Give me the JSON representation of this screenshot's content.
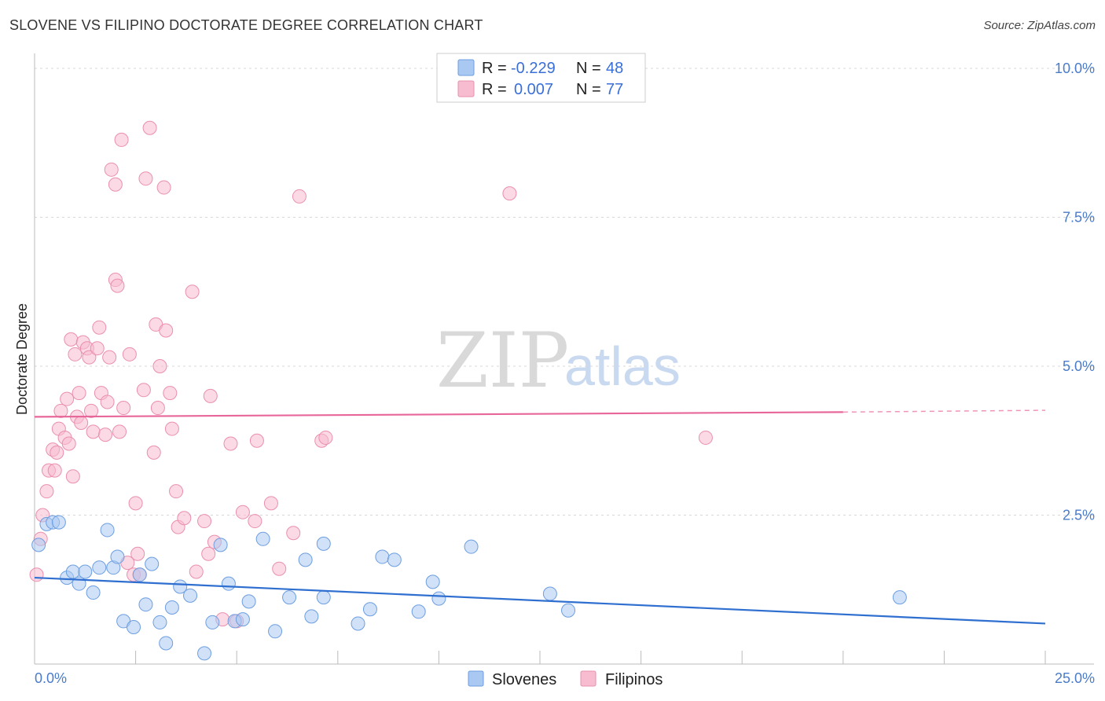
{
  "title": "SLOVENE VS FILIPINO DOCTORATE DEGREE CORRELATION CHART",
  "source": "Source: ZipAtlas.com",
  "watermark": {
    "zip": "ZIP",
    "atlas": "atlas"
  },
  "colors": {
    "slovene_fill": "#a9c8f2",
    "slovene_stroke": "#6d9ee0",
    "slovene_line": "#2f6fd0",
    "filipino_fill": "#f7bcd0",
    "filipino_stroke": "#ea8fae",
    "filipino_line": "#e8679a",
    "tick": "#4a7cc9",
    "grid": "#d8d8d8"
  },
  "legend": {
    "rows": [
      {
        "r_label": "R =",
        "r_value": "-0.229",
        "n_label": "N =",
        "n_value": "48"
      },
      {
        "r_label": "R =",
        "r_value": "0.007",
        "n_label": "N =",
        "n_value": "77"
      }
    ],
    "bottom": [
      "Slovenes",
      "Filipinos"
    ]
  },
  "chart_data": {
    "type": "scatter",
    "title": "SLOVENE VS FILIPINO DOCTORATE DEGREE CORRELATION CHART",
    "xlabel": "",
    "ylabel": "Doctorate Degree",
    "xlim": [
      0,
      25
    ],
    "ylim": [
      0,
      10.25
    ],
    "x_tick_labels": [
      "0.0%",
      "25.0%"
    ],
    "y_ticks": [
      2.5,
      5.0,
      7.5,
      10.0
    ],
    "y_tick_labels": [
      "2.5%",
      "5.0%",
      "7.5%",
      "10.0%"
    ],
    "series": [
      {
        "name": "Slovenes",
        "r": -0.229,
        "n": 48,
        "trend": {
          "x0": 0,
          "y0": 1.45,
          "x1": 25,
          "y1": 0.68
        },
        "points": [
          [
            0.1,
            2.0
          ],
          [
            0.3,
            2.35
          ],
          [
            0.45,
            2.38
          ],
          [
            0.6,
            2.38
          ],
          [
            0.8,
            1.45
          ],
          [
            0.95,
            1.55
          ],
          [
            1.1,
            1.35
          ],
          [
            1.25,
            1.55
          ],
          [
            1.45,
            1.2
          ],
          [
            1.6,
            1.62
          ],
          [
            1.8,
            2.25
          ],
          [
            1.95,
            1.62
          ],
          [
            2.05,
            1.8
          ],
          [
            2.2,
            0.72
          ],
          [
            2.45,
            0.62
          ],
          [
            2.6,
            1.5
          ],
          [
            2.75,
            1.0
          ],
          [
            2.9,
            1.68
          ],
          [
            3.1,
            0.7
          ],
          [
            3.25,
            0.35
          ],
          [
            3.4,
            0.95
          ],
          [
            3.6,
            1.3
          ],
          [
            3.85,
            1.15
          ],
          [
            4.2,
            0.18
          ],
          [
            4.4,
            0.7
          ],
          [
            4.6,
            2.0
          ],
          [
            4.8,
            1.35
          ],
          [
            4.95,
            0.72
          ],
          [
            5.15,
            0.75
          ],
          [
            5.3,
            1.05
          ],
          [
            5.65,
            2.1
          ],
          [
            5.95,
            0.55
          ],
          [
            6.3,
            1.12
          ],
          [
            6.7,
            1.75
          ],
          [
            6.85,
            0.8
          ],
          [
            7.15,
            1.12
          ],
          [
            7.15,
            2.02
          ],
          [
            8.0,
            0.68
          ],
          [
            8.3,
            0.92
          ],
          [
            8.6,
            1.8
          ],
          [
            8.9,
            1.75
          ],
          [
            9.5,
            0.88
          ],
          [
            9.85,
            1.38
          ],
          [
            10.0,
            1.1
          ],
          [
            10.8,
            1.97
          ],
          [
            12.75,
            1.18
          ],
          [
            13.2,
            0.9
          ],
          [
            21.4,
            1.12
          ]
        ]
      },
      {
        "name": "Filipinos",
        "r": 0.007,
        "n": 77,
        "trend": {
          "x0": 0,
          "y0": 4.15,
          "x1": 20,
          "y1": 4.23,
          "dash_x1": 25,
          "dash_y1": 4.26
        },
        "points": [
          [
            0.05,
            1.5
          ],
          [
            0.15,
            2.1
          ],
          [
            0.2,
            2.5
          ],
          [
            0.3,
            2.9
          ],
          [
            0.35,
            3.25
          ],
          [
            0.45,
            3.6
          ],
          [
            0.5,
            3.25
          ],
          [
            0.55,
            3.55
          ],
          [
            0.6,
            3.95
          ],
          [
            0.65,
            4.25
          ],
          [
            0.75,
            3.8
          ],
          [
            0.8,
            4.45
          ],
          [
            0.85,
            3.7
          ],
          [
            0.9,
            5.45
          ],
          [
            0.95,
            3.15
          ],
          [
            1.0,
            5.2
          ],
          [
            1.05,
            4.15
          ],
          [
            1.1,
            4.55
          ],
          [
            1.15,
            4.05
          ],
          [
            1.2,
            5.4
          ],
          [
            1.3,
            5.3
          ],
          [
            1.35,
            5.15
          ],
          [
            1.4,
            4.25
          ],
          [
            1.45,
            3.9
          ],
          [
            1.55,
            5.3
          ],
          [
            1.6,
            5.65
          ],
          [
            1.65,
            4.55
          ],
          [
            1.75,
            3.85
          ],
          [
            1.8,
            4.4
          ],
          [
            1.85,
            5.15
          ],
          [
            1.9,
            8.3
          ],
          [
            2.0,
            8.05
          ],
          [
            2.0,
            6.45
          ],
          [
            2.05,
            6.35
          ],
          [
            2.1,
            3.9
          ],
          [
            2.15,
            8.8
          ],
          [
            2.2,
            4.3
          ],
          [
            2.3,
            1.7
          ],
          [
            2.35,
            5.2
          ],
          [
            2.45,
            1.5
          ],
          [
            2.5,
            2.7
          ],
          [
            2.55,
            1.85
          ],
          [
            2.6,
            1.5
          ],
          [
            2.7,
            4.6
          ],
          [
            2.75,
            8.15
          ],
          [
            2.85,
            9.0
          ],
          [
            2.95,
            3.55
          ],
          [
            3.0,
            5.7
          ],
          [
            3.05,
            4.3
          ],
          [
            3.1,
            5.0
          ],
          [
            3.2,
            8.0
          ],
          [
            3.25,
            5.6
          ],
          [
            3.35,
            4.55
          ],
          [
            3.4,
            3.95
          ],
          [
            3.5,
            2.9
          ],
          [
            3.55,
            2.3
          ],
          [
            3.7,
            2.45
          ],
          [
            3.9,
            6.25
          ],
          [
            4.0,
            1.55
          ],
          [
            4.2,
            2.4
          ],
          [
            4.3,
            1.85
          ],
          [
            4.35,
            4.5
          ],
          [
            4.45,
            2.05
          ],
          [
            4.65,
            0.75
          ],
          [
            4.85,
            3.7
          ],
          [
            5.0,
            0.72
          ],
          [
            5.15,
            2.55
          ],
          [
            5.45,
            2.4
          ],
          [
            5.5,
            3.75
          ],
          [
            5.85,
            2.7
          ],
          [
            6.05,
            1.6
          ],
          [
            6.4,
            2.2
          ],
          [
            6.55,
            7.85
          ],
          [
            7.1,
            3.75
          ],
          [
            7.2,
            3.8
          ],
          [
            11.75,
            7.9
          ],
          [
            16.6,
            3.8
          ]
        ]
      }
    ]
  }
}
